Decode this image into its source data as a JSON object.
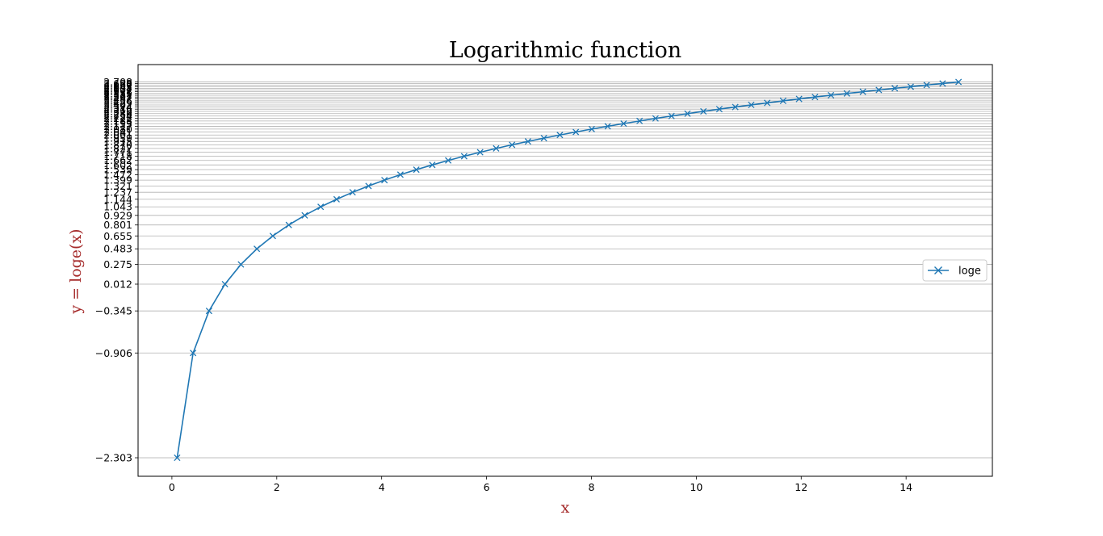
{
  "chart_data": {
    "type": "line",
    "title": "Logarithmic function",
    "xlabel": "x",
    "ylabel": "y = loge(x)",
    "label_color": "#a52a2a",
    "line_color": "#1f77b4",
    "marker": "x",
    "grid": "horizontal",
    "legend_position": "center-right",
    "xlim": [
      -0.645,
      15.645
    ],
    "ylim": [
      -2.55,
      2.94
    ],
    "xticks": [
      0,
      2,
      4,
      6,
      8,
      10,
      12,
      14
    ],
    "xtick_labels": [
      "0",
      "2",
      "4",
      "6",
      "8",
      "10",
      "12",
      "14"
    ],
    "series": [
      {
        "name": "loge",
        "x": [
          0.1,
          0.404,
          0.708,
          1.012,
          1.316,
          1.62,
          1.924,
          2.229,
          2.533,
          2.837,
          3.141,
          3.445,
          3.749,
          4.053,
          4.357,
          4.661,
          4.965,
          5.269,
          5.573,
          5.878,
          6.182,
          6.486,
          6.79,
          7.094,
          7.398,
          7.702,
          8.006,
          8.31,
          8.614,
          8.918,
          9.222,
          9.527,
          9.831,
          10.135,
          10.439,
          10.743,
          11.047,
          11.351,
          11.655,
          11.959,
          12.263,
          12.567,
          12.871,
          13.176,
          13.48,
          13.784,
          14.088,
          14.392,
          14.696,
          15.0
        ],
        "y": [
          -2.303,
          -0.906,
          -0.345,
          0.012,
          0.275,
          0.483,
          0.655,
          0.801,
          0.929,
          1.043,
          1.144,
          1.237,
          1.321,
          1.399,
          1.472,
          1.539,
          1.602,
          1.662,
          1.718,
          1.771,
          1.822,
          1.87,
          1.915,
          1.959,
          2.001,
          2.041,
          2.08,
          2.117,
          2.153,
          2.188,
          2.222,
          2.254,
          2.286,
          2.316,
          2.346,
          2.374,
          2.402,
          2.429,
          2.456,
          2.482,
          2.507,
          2.531,
          2.555,
          2.578,
          2.601,
          2.624,
          2.645,
          2.667,
          2.688,
          2.708
        ]
      }
    ],
    "yticks": [
      -2.303,
      -0.906,
      -0.345,
      0.012,
      0.275,
      0.483,
      0.655,
      0.801,
      0.929,
      1.043,
      1.144,
      1.237,
      1.321,
      1.399,
      1.472,
      1.539,
      1.602,
      1.662,
      1.718,
      1.771,
      1.822,
      1.87,
      1.915,
      1.959,
      2.001,
      2.041,
      2.08,
      2.117,
      2.153,
      2.188,
      2.222,
      2.254,
      2.286,
      2.316,
      2.346,
      2.374,
      2.402,
      2.429,
      2.456,
      2.482,
      2.507,
      2.531,
      2.555,
      2.578,
      2.601,
      2.624,
      2.645,
      2.667,
      2.688,
      2.708
    ],
    "ytick_labels": [
      "−2.303",
      "−0.906",
      "−0.345",
      "0.012",
      "0.275",
      "0.483",
      "0.655",
      "0.801",
      "0.929",
      "1.043",
      "1.144",
      "1.237",
      "1.321",
      "1.399",
      "1.472",
      "1.539",
      "1.602",
      "1.662",
      "1.718",
      "1.771",
      "1.822",
      "1.870",
      "1.915",
      "1.959",
      "2.001",
      "2.041",
      "2.080",
      "2.117",
      "2.153",
      "2.188",
      "2.222",
      "2.254",
      "2.286",
      "2.316",
      "2.346",
      "2.374",
      "2.402",
      "2.429",
      "2.456",
      "2.482",
      "2.507",
      "2.531",
      "2.555",
      "2.578",
      "2.601",
      "2.624",
      "2.645",
      "2.667",
      "2.688",
      "2.708"
    ]
  }
}
